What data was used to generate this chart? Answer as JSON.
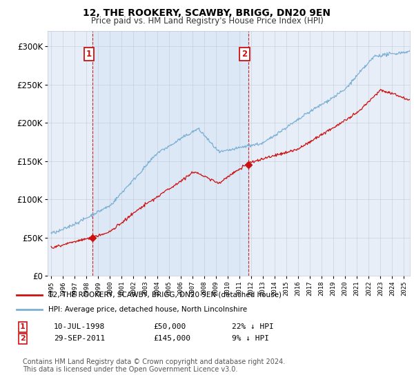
{
  "title": "12, THE ROOKERY, SCAWBY, BRIGG, DN20 9EN",
  "subtitle": "Price paid vs. HM Land Registry's House Price Index (HPI)",
  "legend_line1": "12, THE ROOKERY, SCAWBY, BRIGG, DN20 9EN (detached house)",
  "legend_line2": "HPI: Average price, detached house, North Lincolnshire",
  "sale1_label": "1",
  "sale1_date": "10-JUL-1998",
  "sale1_price": "£50,000",
  "sale1_hpi": "22% ↓ HPI",
  "sale1_year": 1998.53,
  "sale1_value": 50000,
  "sale2_label": "2",
  "sale2_date": "29-SEP-2011",
  "sale2_price": "£145,000",
  "sale2_hpi": "9% ↓ HPI",
  "sale2_year": 2011.75,
  "sale2_value": 145000,
  "hpi_color": "#7bafd4",
  "price_color": "#cc1111",
  "annotation_color": "#cc1111",
  "background_color": "#f0f4fa",
  "plot_bg_color": "#e8eef8",
  "shade_color": "#dce8f5",
  "grid_color": "#c0c8d8",
  "ylim_min": 0,
  "ylim_max": 320000,
  "footer_text": "Contains HM Land Registry data © Crown copyright and database right 2024.\nThis data is licensed under the Open Government Licence v3.0."
}
